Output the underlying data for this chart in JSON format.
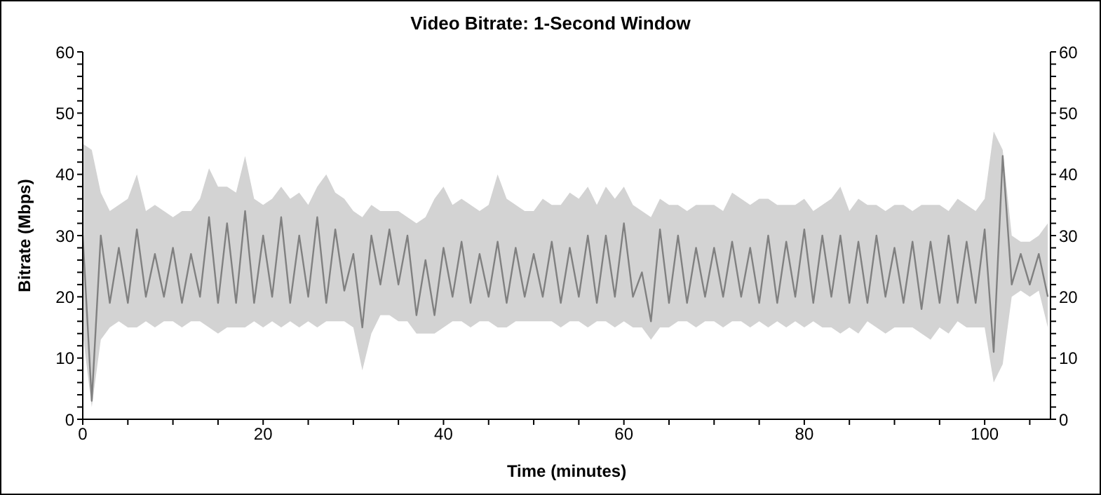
{
  "chart_data": {
    "type": "line",
    "title": "Video Bitrate: 1-Second Window",
    "xlabel": "Time (minutes)",
    "ylabel": "Bitrate (Mbps)",
    "x": [
      0,
      1,
      2,
      3,
      4,
      5,
      6,
      7,
      8,
      9,
      10,
      11,
      12,
      13,
      14,
      15,
      16,
      17,
      18,
      19,
      20,
      21,
      22,
      23,
      24,
      25,
      26,
      27,
      28,
      29,
      30,
      31,
      32,
      33,
      34,
      35,
      36,
      37,
      38,
      39,
      40,
      41,
      42,
      43,
      44,
      45,
      46,
      47,
      48,
      49,
      50,
      51,
      52,
      53,
      54,
      55,
      56,
      57,
      58,
      59,
      60,
      61,
      62,
      63,
      64,
      65,
      66,
      67,
      68,
      69,
      70,
      71,
      72,
      73,
      74,
      75,
      76,
      77,
      78,
      79,
      80,
      81,
      82,
      83,
      84,
      85,
      86,
      87,
      88,
      89,
      90,
      91,
      92,
      93,
      94,
      95,
      96,
      97,
      98,
      99,
      100,
      101,
      102,
      103,
      104,
      105,
      106,
      107
    ],
    "series": [
      {
        "color": "#808080",
        "values": [
          30,
          3,
          30,
          19,
          28,
          19,
          31,
          20,
          27,
          20,
          28,
          19,
          27,
          20,
          33,
          19,
          32,
          19,
          34,
          19,
          30,
          20,
          33,
          19,
          30,
          20,
          33,
          19,
          31,
          21,
          27,
          15,
          30,
          22,
          31,
          22,
          30,
          17,
          26,
          17,
          28,
          20,
          29,
          19,
          27,
          20,
          29,
          19,
          28,
          20,
          27,
          20,
          29,
          19,
          28,
          20,
          30,
          19,
          30,
          20,
          32,
          20,
          24,
          16,
          31,
          19,
          30,
          19,
          28,
          20,
          28,
          20,
          29,
          20,
          28,
          19,
          30,
          19,
          29,
          20,
          31,
          19,
          30,
          20,
          30,
          19,
          29,
          19,
          30,
          20,
          28,
          19,
          29,
          18,
          29,
          19,
          30,
          19,
          29,
          19,
          31,
          11,
          43,
          22,
          27,
          22,
          27,
          20
        ],
        "upper": [
          45,
          44,
          37,
          34,
          35,
          36,
          40,
          34,
          35,
          34,
          33,
          34,
          34,
          36,
          41,
          38,
          38,
          37,
          43,
          36,
          35,
          36,
          38,
          36,
          37,
          35,
          38,
          40,
          37,
          36,
          34,
          33,
          35,
          34,
          34,
          34,
          33,
          32,
          33,
          36,
          38,
          35,
          36,
          35,
          34,
          35,
          40,
          36,
          35,
          34,
          34,
          36,
          35,
          35,
          37,
          36,
          38,
          35,
          38,
          36,
          38,
          35,
          34,
          33,
          36,
          35,
          35,
          34,
          35,
          35,
          35,
          34,
          37,
          36,
          35,
          36,
          36,
          35,
          35,
          35,
          36,
          34,
          35,
          36,
          38,
          34,
          36,
          35,
          35,
          34,
          35,
          35,
          34,
          35,
          35,
          35,
          34,
          36,
          35,
          34,
          36,
          47,
          44,
          30,
          29,
          29,
          30,
          32
        ],
        "lower": [
          14,
          2,
          13,
          15,
          16,
          15,
          15,
          16,
          15,
          16,
          16,
          15,
          16,
          16,
          15,
          14,
          15,
          15,
          15,
          16,
          15,
          16,
          15,
          16,
          15,
          16,
          15,
          16,
          16,
          16,
          15,
          8,
          14,
          17,
          17,
          16,
          16,
          14,
          14,
          14,
          15,
          16,
          16,
          15,
          16,
          16,
          15,
          15,
          16,
          16,
          16,
          16,
          16,
          15,
          16,
          16,
          15,
          16,
          16,
          15,
          16,
          15,
          15,
          13,
          15,
          15,
          16,
          16,
          15,
          16,
          16,
          15,
          16,
          16,
          15,
          16,
          15,
          16,
          15,
          16,
          15,
          16,
          15,
          15,
          14,
          15,
          14,
          16,
          15,
          14,
          15,
          15,
          15,
          14,
          13,
          15,
          14,
          16,
          15,
          15,
          15,
          6,
          9,
          20,
          21,
          20,
          21,
          15
        ]
      }
    ],
    "xlim": [
      0,
      107.3
    ],
    "xticks": [
      0,
      {
        "value": 5,
        "label": null
      },
      {
        "value": 10,
        "label": null
      },
      {
        "value": 15,
        "label": null
      },
      20,
      {
        "value": 25,
        "label": null
      },
      {
        "value": 30,
        "label": null
      },
      {
        "value": 35,
        "label": null
      },
      40,
      {
        "value": 45,
        "label": null
      },
      {
        "value": 50,
        "label": null
      },
      {
        "value": 55,
        "label": null
      },
      60,
      {
        "value": 65,
        "label": null
      },
      {
        "value": 70,
        "label": null
      },
      {
        "value": 75,
        "label": null
      },
      80,
      {
        "value": 85,
        "label": null
      },
      {
        "value": 90,
        "label": null
      },
      {
        "value": 95,
        "label": null
      },
      100,
      {
        "value": 105,
        "label": null
      }
    ],
    "ylim": [
      0,
      60
    ],
    "yticks": [
      0,
      {
        "value": 2,
        "label": null
      },
      {
        "value": 4,
        "label": null
      },
      {
        "value": 6,
        "label": null
      },
      {
        "value": 8,
        "label": null
      },
      10,
      {
        "value": 12,
        "label": null
      },
      {
        "value": 14,
        "label": null
      },
      {
        "value": 16,
        "label": null
      },
      {
        "value": 18,
        "label": null
      },
      20,
      {
        "value": 22,
        "label": null
      },
      {
        "value": 24,
        "label": null
      },
      {
        "value": 26,
        "label": null
      },
      {
        "value": 28,
        "label": null
      },
      30,
      {
        "value": 32,
        "label": null
      },
      {
        "value": 34,
        "label": null
      },
      {
        "value": 36,
        "label": null
      },
      {
        "value": 38,
        "label": null
      },
      40,
      {
        "value": 42,
        "label": null
      },
      {
        "value": 44,
        "label": null
      },
      {
        "value": 46,
        "label": null
      },
      {
        "value": 48,
        "label": null
      },
      50,
      {
        "value": 52,
        "label": null
      },
      {
        "value": 54,
        "label": null
      },
      {
        "value": 56,
        "label": null
      },
      {
        "value": 58,
        "label": null
      },
      60
    ],
    "y2lim": [
      0,
      60
    ],
    "y2ticks": [
      0,
      {
        "value": 2,
        "label": null
      },
      {
        "value": 4,
        "label": null
      },
      {
        "value": 6,
        "label": null
      },
      {
        "value": 8,
        "label": null
      },
      10,
      {
        "value": 12,
        "label": null
      },
      {
        "value": 14,
        "label": null
      },
      {
        "value": 16,
        "label": null
      },
      {
        "value": 18,
        "label": null
      },
      20,
      {
        "value": 22,
        "label": null
      },
      {
        "value": 24,
        "label": null
      },
      {
        "value": 26,
        "label": null
      },
      {
        "value": 28,
        "label": null
      },
      30,
      {
        "value": 32,
        "label": null
      },
      {
        "value": 34,
        "label": null
      },
      {
        "value": 36,
        "label": null
      },
      {
        "value": 38,
        "label": null
      },
      40,
      {
        "value": 42,
        "label": null
      },
      {
        "value": 44,
        "label": null
      },
      {
        "value": 46,
        "label": null
      },
      {
        "value": 48,
        "label": null
      },
      50,
      {
        "value": 52,
        "label": null
      },
      {
        "value": 54,
        "label": null
      },
      {
        "value": 56,
        "label": null
      },
      {
        "value": 58,
        "label": null
      },
      60
    ],
    "grid": false,
    "legend": false,
    "marker": "none",
    "line_style": "solid"
  }
}
